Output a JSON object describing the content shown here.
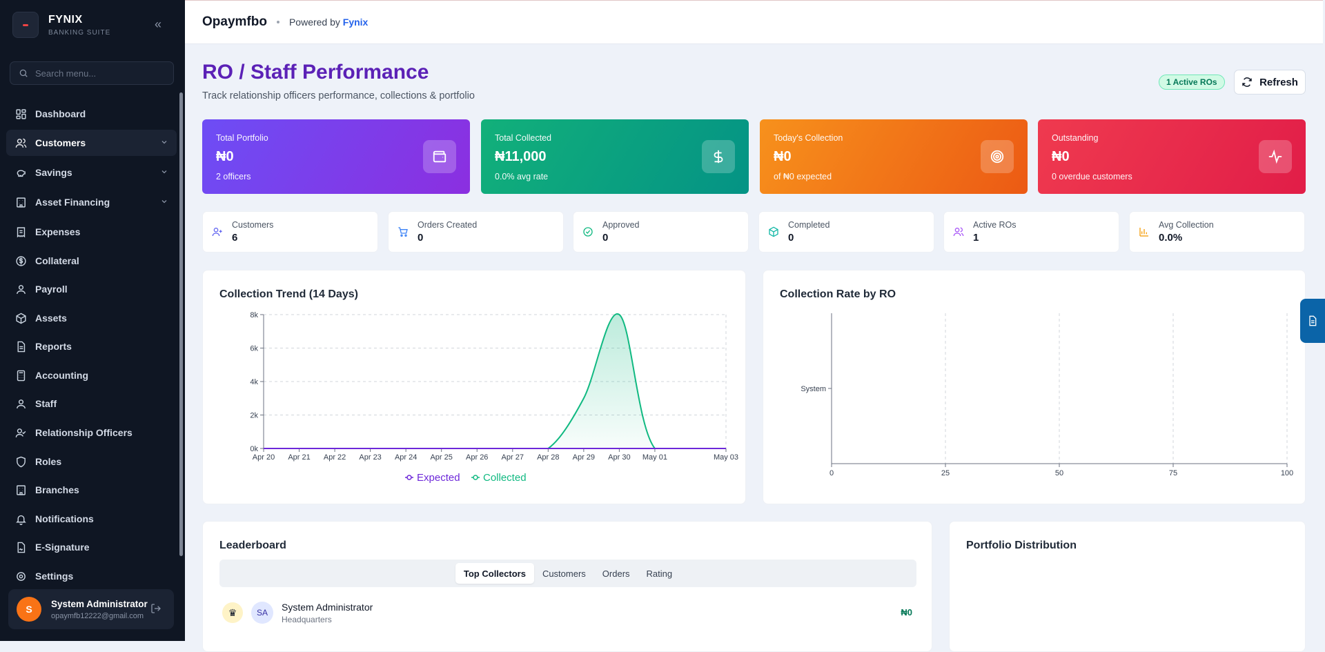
{
  "sidebar": {
    "brand_name": "FYNIX",
    "brand_sub": "BANKING SUITE",
    "search_placeholder": "Search menu...",
    "items": [
      {
        "label": "Dashboard",
        "icon": "dashboard-icon"
      },
      {
        "label": "Customers",
        "icon": "users-icon"
      },
      {
        "label": "Savings",
        "icon": "piggy-bank-icon"
      },
      {
        "label": "Asset Financing",
        "icon": "building-icon"
      },
      {
        "label": "Expenses",
        "icon": "receipt-icon"
      },
      {
        "label": "Collateral",
        "icon": "dollar-circle-icon"
      },
      {
        "label": "Payroll",
        "icon": "user-icon"
      },
      {
        "label": "Assets",
        "icon": "box-icon"
      },
      {
        "label": "Reports",
        "icon": "file-icon"
      },
      {
        "label": "Accounting",
        "icon": "calculator-icon"
      },
      {
        "label": "Staff",
        "icon": "user-icon"
      },
      {
        "label": "Relationship Officers",
        "icon": "user-check-icon"
      },
      {
        "label": "Roles",
        "icon": "shield-icon"
      },
      {
        "label": "Branches",
        "icon": "building-icon"
      },
      {
        "label": "Notifications",
        "icon": "bell-icon"
      },
      {
        "label": "E-Signature",
        "icon": "signature-icon"
      },
      {
        "label": "Settings",
        "icon": "gear-icon"
      }
    ],
    "user": {
      "initial": "S",
      "name": "System Administrator",
      "email": "opaymfb12222@gmail.com"
    }
  },
  "header": {
    "org": "Opaymfbo",
    "powered_prefix": "Powered by",
    "powered_brand": "Fynix"
  },
  "page": {
    "title": "RO / Staff Performance",
    "subtitle": "Track relationship officers performance, collections & portfolio",
    "active_badge": "1 Active ROs",
    "refresh_label": "Refresh"
  },
  "kpis": [
    {
      "label": "Total Portfolio",
      "value": "₦0",
      "sub": "2 officers",
      "color_from": "#6d4df5",
      "color_to": "#8b2fe0",
      "icon": "wallet-icon"
    },
    {
      "label": "Total Collected",
      "value": "₦11,000",
      "sub": "0.0% avg rate",
      "color_from": "#12b07a",
      "color_to": "#049385",
      "icon": "dollar-icon"
    },
    {
      "label": "Today's Collection",
      "value": "₦0",
      "sub": "of ₦0 expected",
      "color_from": "#f7911c",
      "color_to": "#ec5a14",
      "icon": "target-icon"
    },
    {
      "label": "Outstanding",
      "value": "₦0",
      "sub": "0 overdue customers",
      "color_from": "#ef3a4f",
      "color_to": "#e11d48",
      "icon": "activity-icon"
    }
  ],
  "stats": [
    {
      "label": "Customers",
      "value": "6",
      "icon": "user-plus-icon",
      "color": "#6366f1"
    },
    {
      "label": "Orders Created",
      "value": "0",
      "icon": "cart-icon",
      "color": "#3b82f6"
    },
    {
      "label": "Approved",
      "value": "0",
      "icon": "check-circle-icon",
      "color": "#10b981"
    },
    {
      "label": "Completed",
      "value": "0",
      "icon": "package-icon",
      "color": "#14b8a6"
    },
    {
      "label": "Active ROs",
      "value": "1",
      "icon": "users-icon",
      "color": "#a855f7"
    },
    {
      "label": "Avg Collection",
      "value": "0.0%",
      "icon": "bar-chart-icon",
      "color": "#f59e0b"
    }
  ],
  "trend_card": {
    "title": "Collection Trend (14 Days)"
  },
  "rate_card": {
    "title": "Collection Rate by RO"
  },
  "chart_data": [
    {
      "type": "area",
      "title": "Collection Trend (14 Days)",
      "x": [
        "Apr 20",
        "Apr 21",
        "Apr 22",
        "Apr 23",
        "Apr 24",
        "Apr 25",
        "Apr 26",
        "Apr 27",
        "Apr 28",
        "Apr 29",
        "Apr 30",
        "May 01",
        "May 03"
      ],
      "x_tick_positions": [
        0,
        1,
        2,
        3,
        4,
        5,
        6,
        7,
        8,
        9,
        10,
        11,
        13
      ],
      "series": [
        {
          "name": "Expected",
          "color": "#6d28d9",
          "values": [
            0,
            0,
            0,
            0,
            0,
            0,
            0,
            0,
            0,
            0,
            0,
            0,
            0
          ]
        },
        {
          "name": "Collected",
          "color": "#10b981",
          "values": [
            0,
            0,
            0,
            0,
            0,
            0,
            0,
            0,
            0,
            3000,
            8000,
            0,
            0
          ]
        }
      ],
      "y_ticks": [
        "0k",
        "2k",
        "4k",
        "6k",
        "8k"
      ],
      "ylim": [
        0,
        8000
      ],
      "grid": true,
      "legend": "bottom"
    },
    {
      "type": "bar",
      "orientation": "horizontal",
      "title": "Collection Rate by RO",
      "categories": [
        "System"
      ],
      "values": [
        0
      ],
      "x_ticks": [
        "0",
        "25",
        "50",
        "75",
        "100"
      ],
      "xlim": [
        0,
        100
      ],
      "grid": true
    }
  ],
  "leaderboard": {
    "title": "Leaderboard",
    "tabs": [
      "Top Collectors",
      "Customers",
      "Orders",
      "Rating"
    ],
    "rows": [
      {
        "rank_icon": "crown-icon",
        "initials": "SA",
        "name": "System Administrator",
        "branch": "Headquarters",
        "amount": "₦0"
      }
    ]
  },
  "portfolio": {
    "title": "Portfolio Distribution"
  }
}
